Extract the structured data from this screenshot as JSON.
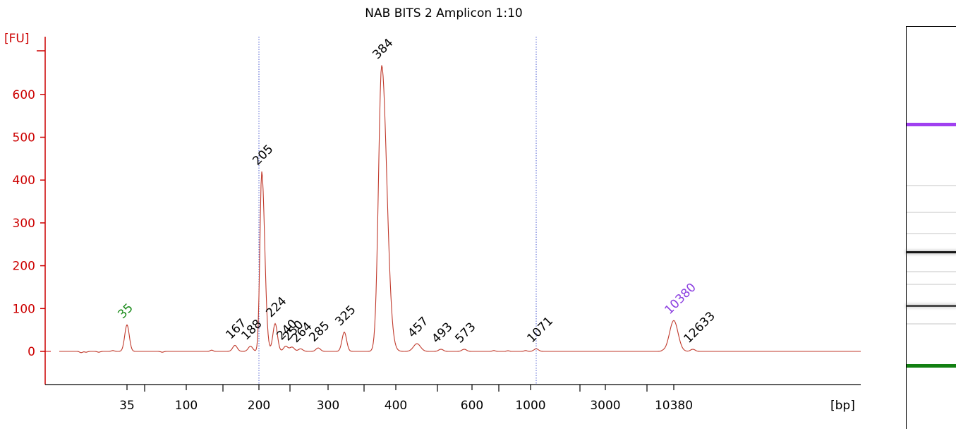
{
  "chart_data": {
    "type": "line",
    "title": "NAB BITS 2 Amplicon 1:10",
    "ylabel": "[FU]",
    "xlabel": "[bp]",
    "ylim": [
      -70,
      680
    ],
    "yticks": [
      0,
      100,
      200,
      300,
      400,
      500,
      600
    ],
    "xticks": [
      "35",
      "100",
      "200",
      "300",
      "400",
      "600",
      "1000",
      "3000",
      "10380"
    ],
    "lower_marker": {
      "label": "35",
      "color": "#1a8a1a"
    },
    "upper_marker": {
      "label": "10380",
      "color": "#8b3fe0"
    },
    "peaks": [
      {
        "bp": "35",
        "fu": 62
      },
      {
        "bp": "167",
        "fu": 14
      },
      {
        "bp": "188",
        "fu": 12
      },
      {
        "bp": "205",
        "fu": 420
      },
      {
        "bp": "224",
        "fu": 65
      },
      {
        "bp": "240",
        "fu": 12
      },
      {
        "bp": "250",
        "fu": 10
      },
      {
        "bp": "264",
        "fu": 6
      },
      {
        "bp": "285",
        "fu": 8
      },
      {
        "bp": "325",
        "fu": 45
      },
      {
        "bp": "384",
        "fu": 668
      },
      {
        "bp": "457",
        "fu": 18
      },
      {
        "bp": "493",
        "fu": 5
      },
      {
        "bp": "573",
        "fu": 5
      },
      {
        "bp": "1071",
        "fu": 6
      },
      {
        "bp": "10380",
        "fu": 72
      },
      {
        "bp": "12633",
        "fu": 5
      }
    ],
    "region_boundaries_bp": [
      "200",
      "1071"
    ]
  },
  "gel": {
    "bands": [
      {
        "name": "upper-marker-band",
        "color": "#a040f0",
        "intensity": 1.0
      },
      {
        "name": "band-384",
        "color": "#000000",
        "intensity": 0.9
      },
      {
        "name": "band-205",
        "color": "#000000",
        "intensity": 0.7
      },
      {
        "name": "lower-marker-band",
        "color": "#128012",
        "intensity": 1.0
      }
    ]
  }
}
